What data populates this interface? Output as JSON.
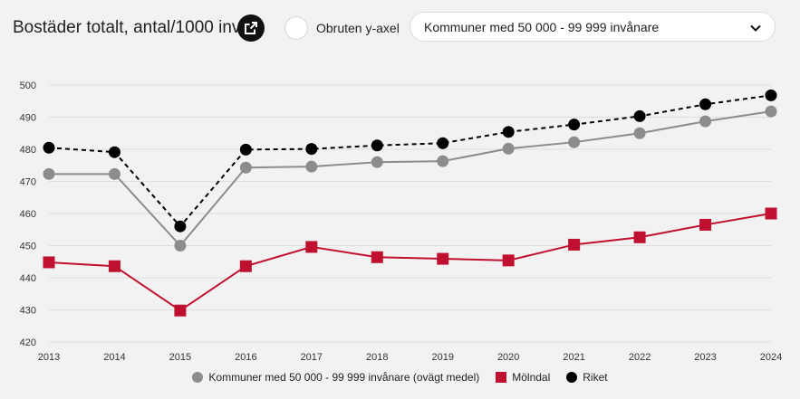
{
  "header": {
    "title": "Bostäder totalt, antal/1000 inv",
    "broken_axis_label": "Obruten y-axel",
    "selected_group": "Kommuner med 50 000 - 99 999 invånare"
  },
  "icons": {
    "share": "external-link-icon",
    "dropdown": "chevron-down-icon"
  },
  "chart_data": {
    "type": "line",
    "categories": [
      "2013",
      "2014",
      "2015",
      "2016",
      "2017",
      "2018",
      "2019",
      "2020",
      "2021",
      "2022",
      "2023",
      "2024"
    ],
    "ylim": [
      420,
      500
    ],
    "yticks": [
      420,
      430,
      440,
      450,
      460,
      470,
      480,
      490,
      500
    ],
    "grid": true,
    "legend_position": "bottom",
    "series": [
      {
        "name": "Kommuner med 50 000 - 99 999 invånare (ovägt medel)",
        "color": "#8c8c8c",
        "marker": "circle",
        "dash": "solid",
        "values": [
          472.3,
          472.3,
          450.0,
          474.3,
          474.6,
          476.0,
          476.3,
          480.2,
          482.2,
          485.0,
          488.7,
          491.8
        ]
      },
      {
        "name": "Mölndal",
        "color": "#c0102f",
        "marker": "square",
        "dash": "solid",
        "values": [
          444.8,
          443.6,
          429.8,
          443.6,
          449.6,
          446.4,
          445.9,
          445.4,
          450.3,
          452.6,
          456.5,
          460.0
        ]
      },
      {
        "name": "Riket",
        "color": "#000000",
        "marker": "circle",
        "dash": "dashed",
        "values": [
          480.5,
          479.1,
          456.0,
          479.9,
          480.1,
          481.2,
          481.9,
          485.4,
          487.7,
          490.3,
          494.0,
          496.8
        ]
      }
    ]
  }
}
